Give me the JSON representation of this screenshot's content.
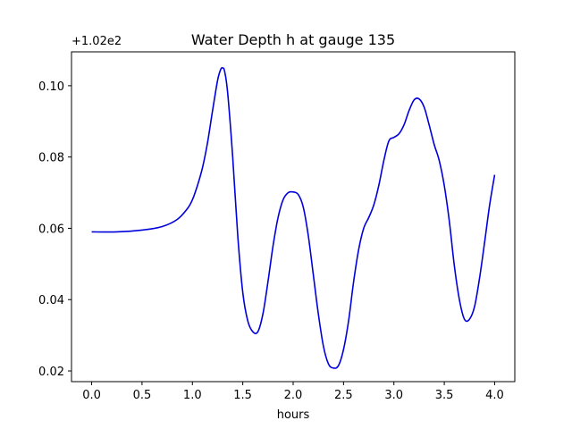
{
  "chart_data": {
    "type": "line",
    "title": "Water Depth h at gauge 135",
    "xlabel": "hours",
    "ylabel": "",
    "y_offset_label": "+1.02e2",
    "xlim": [
      -0.2,
      4.2
    ],
    "ylim": [
      0.017,
      0.1095
    ],
    "grid": false,
    "x_ticks": [
      0.0,
      0.5,
      1.0,
      1.5,
      2.0,
      2.5,
      3.0,
      3.5,
      4.0
    ],
    "x_tick_labels": [
      "0.0",
      "0.5",
      "1.0",
      "1.5",
      "2.0",
      "2.5",
      "3.0",
      "3.5",
      "4.0"
    ],
    "y_ticks": [
      0.02,
      0.04,
      0.06,
      0.08,
      0.1
    ],
    "y_tick_labels": [
      "0.02",
      "0.04",
      "0.06",
      "0.08",
      "0.10"
    ],
    "series": [
      {
        "color": "#0000dd",
        "x": [
          0.0,
          0.25,
          0.5,
          0.7,
          0.85,
          0.95,
          1.0,
          1.05,
          1.1,
          1.15,
          1.2,
          1.25,
          1.28,
          1.3,
          1.32,
          1.35,
          1.4,
          1.45,
          1.5,
          1.55,
          1.6,
          1.65,
          1.7,
          1.75,
          1.8,
          1.85,
          1.9,
          1.95,
          2.0,
          2.05,
          2.1,
          2.15,
          2.2,
          2.25,
          2.3,
          2.35,
          2.4,
          2.45,
          2.5,
          2.55,
          2.6,
          2.65,
          2.7,
          2.75,
          2.8,
          2.85,
          2.9,
          2.95,
          3.0,
          3.05,
          3.1,
          3.15,
          3.2,
          3.25,
          3.3,
          3.35,
          3.4,
          3.45,
          3.5,
          3.55,
          3.6,
          3.65,
          3.7,
          3.75,
          3.8,
          3.85,
          3.9,
          3.95,
          4.0
        ],
        "y": [
          0.059,
          0.059,
          0.0595,
          0.0605,
          0.0625,
          0.0655,
          0.068,
          0.072,
          0.077,
          0.084,
          0.093,
          0.1015,
          0.1045,
          0.105,
          0.104,
          0.098,
          0.08,
          0.058,
          0.042,
          0.034,
          0.031,
          0.031,
          0.036,
          0.045,
          0.055,
          0.063,
          0.068,
          0.07,
          0.0702,
          0.0695,
          0.066,
          0.058,
          0.047,
          0.036,
          0.027,
          0.022,
          0.0208,
          0.0215,
          0.026,
          0.034,
          0.045,
          0.054,
          0.06,
          0.063,
          0.0665,
          0.072,
          0.079,
          0.0845,
          0.0855,
          0.0865,
          0.089,
          0.093,
          0.096,
          0.0963,
          0.094,
          0.089,
          0.0835,
          0.079,
          0.072,
          0.062,
          0.0495,
          0.04,
          0.0345,
          0.0345,
          0.038,
          0.046,
          0.056,
          0.0665,
          0.075
        ]
      }
    ]
  }
}
